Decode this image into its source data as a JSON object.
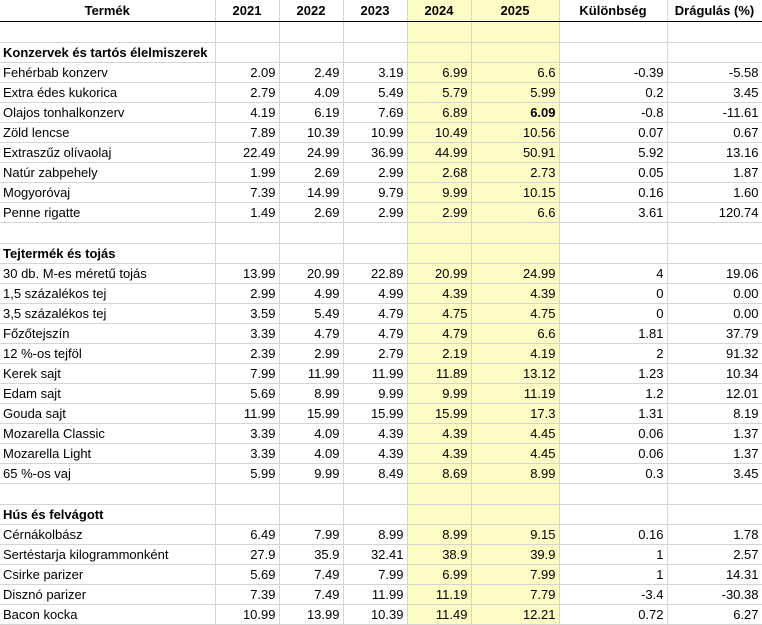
{
  "headers": [
    "Termék",
    "2021",
    "2022",
    "2023",
    "2024",
    "2025",
    "Különbség",
    "Drágulás (%)"
  ],
  "sections": [
    {
      "title": "Konzervek és tartós élelmiszerek",
      "rows": [
        [
          "Fehérbab konzerv",
          "2.09",
          "2.49",
          "3.19",
          "6.99",
          "6.6",
          "-0.39",
          "-5.58"
        ],
        [
          "Extra édes kukorica",
          "2.79",
          "4.09",
          "5.49",
          "5.79",
          "5.99",
          "0.2",
          "3.45"
        ],
        [
          "Olajos tonhalkonzerv",
          "4.19",
          "6.19",
          "7.69",
          "6.89",
          "6.09",
          "-0.8",
          "-11.61"
        ],
        [
          "Zöld lencse",
          "7.89",
          "10.39",
          "10.99",
          "10.49",
          "10.56",
          "0.07",
          "0.67"
        ],
        [
          "Extraszűz olívaolaj",
          "22.49",
          "24.99",
          "36.99",
          "44.99",
          "50.91",
          "5.92",
          "13.16"
        ],
        [
          "Natúr zabpehely",
          "1.99",
          "2.69",
          "2.99",
          "2.68",
          "2.73",
          "0.05",
          "1.87"
        ],
        [
          "Mogyoróvaj",
          "7.39",
          "14.99",
          "9.79",
          "9.99",
          "10.15",
          "0.16",
          "1.60"
        ],
        [
          "Penne rigatte",
          "1.49",
          "2.69",
          "2.99",
          "2.99",
          "6.6",
          "3.61",
          "120.74"
        ]
      ]
    },
    {
      "title": "Tejtermék és tojás",
      "rows": [
        [
          "30 db. M-es méretű tojás",
          "13.99",
          "20.99",
          "22.89",
          "20.99",
          "24.99",
          "4",
          "19.06"
        ],
        [
          "1,5 százalékos tej",
          "2.99",
          "4.99",
          "4.99",
          "4.39",
          "4.39",
          "0",
          "0.00"
        ],
        [
          "3,5 százalékos tej",
          "3.59",
          "5.49",
          "4.79",
          "4.75",
          "4.75",
          "0",
          "0.00"
        ],
        [
          "Főzőtejszín",
          "3.39",
          "4.79",
          "4.79",
          "4.79",
          "6.6",
          "1.81",
          "37.79"
        ],
        [
          "12 %-os tejföl",
          "2.39",
          "2.99",
          "2.79",
          "2.19",
          "4.19",
          "2",
          "91.32"
        ],
        [
          "Kerek sajt",
          "7.99",
          "11.99",
          "11.99",
          "11.89",
          "13.12",
          "1.23",
          "10.34"
        ],
        [
          "Edam sajt",
          "5.69",
          "8.99",
          "9.99",
          "9.99",
          "11.19",
          "1.2",
          "12.01"
        ],
        [
          "Gouda sajt",
          "11.99",
          "15.99",
          "15.99",
          "15.99",
          "17.3",
          "1.31",
          "8.19"
        ],
        [
          "Mozarella Classic",
          "3.39",
          "4.09",
          "4.39",
          "4.39",
          "4.45",
          "0.06",
          "1.37"
        ],
        [
          "Mozarella Light",
          "3.39",
          "4.09",
          "4.39",
          "4.39",
          "4.45",
          "0.06",
          "1.37"
        ],
        [
          "65 %-os vaj",
          "5.99",
          "9.99",
          "8.49",
          "8.69",
          "8.99",
          "0.3",
          "3.45"
        ]
      ]
    },
    {
      "title": "Hús és felvágott",
      "rows": [
        [
          "Cérnákolbász",
          "6.49",
          "7.99",
          "8.99",
          "8.99",
          "9.15",
          "0.16",
          "1.78"
        ],
        [
          "Sertéstarja kilogrammonként",
          "27.9",
          "35.9",
          "32.41",
          "38.9",
          "39.9",
          "1",
          "2.57"
        ],
        [
          "Csirke parizer",
          "5.69",
          "7.49",
          "7.99",
          "6.99",
          "7.99",
          "1",
          "14.31"
        ],
        [
          "Disznó parizer",
          "7.39",
          "7.49",
          "11.99",
          "11.19",
          "7.79",
          "-3.4",
          "-30.38"
        ],
        [
          "Bacon kocka",
          "10.99",
          "13.99",
          "10.39",
          "11.49",
          "12.21",
          "0.72",
          "6.27"
        ]
      ]
    }
  ],
  "bold_cells": [
    [
      0,
      2,
      5
    ]
  ]
}
